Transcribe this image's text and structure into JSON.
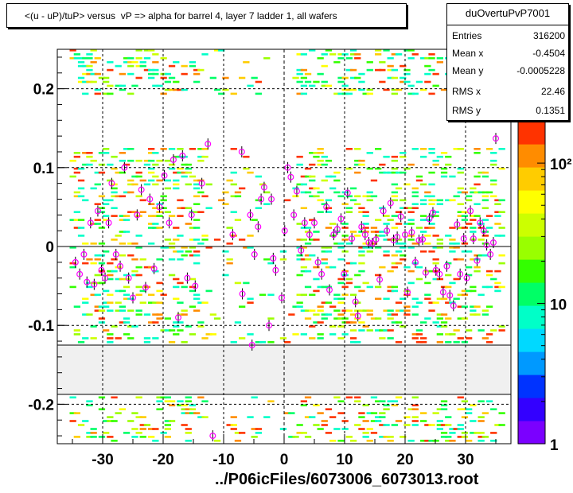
{
  "title": "<(u - uP)/tuP> versus  vP => alpha for barrel 4, layer 7 ladder 1, all wafers",
  "stats": {
    "name": "duOvertuPvP7001",
    "rows": [
      {
        "label": "Entries",
        "value": "316200"
      },
      {
        "label": "Mean x",
        "value": "-0.4504"
      },
      {
        "label": "Mean y",
        "value": "-0.0005228"
      },
      {
        "label": "RMS x",
        "value": "22.46"
      },
      {
        "label": "RMS y",
        "value": "0.1351"
      }
    ]
  },
  "footer": "../P06icFiles/6073006_6073013.root",
  "chart_data": {
    "type": "heatmap",
    "title": "<(u - uP)/tuP> versus  vP => alpha for barrel 4, layer 7 ladder 1, all wafers",
    "xlabel": "",
    "ylabel": "",
    "xlim": [
      -37.5,
      37.5
    ],
    "ylim": [
      -0.25,
      0.25
    ],
    "x_ticks": [
      -30,
      -20,
      -10,
      0,
      10,
      20,
      30
    ],
    "x_tick_labels": [
      "-30",
      "-20",
      "-10",
      "0",
      "10",
      "20",
      "30"
    ],
    "y_ticks": [
      -0.2,
      -0.1,
      0,
      0.1,
      0.2
    ],
    "y_tick_labels": [
      "-0.2",
      "-0.1",
      "0",
      "0.1",
      "0.2"
    ],
    "grid": true,
    "empty_band_y": [
      -0.188,
      -0.124
    ],
    "color_scale": {
      "type": "log",
      "min": 1,
      "max": 200,
      "tick_labels": [
        "1",
        "10",
        "10²"
      ]
    },
    "colors": [
      "#7b00ff",
      "#3300ff",
      "#0033ff",
      "#0099ff",
      "#00d9ff",
      "#00ffc8",
      "#00ff66",
      "#33ff00",
      "#99ff00",
      "#ccff00",
      "#ffff00",
      "#ffcc00",
      "#ff8c00",
      "#ff3300"
    ],
    "profile_points": [
      {
        "x": -34.5,
        "y": -0.02
      },
      {
        "x": -33.8,
        "y": -0.035
      },
      {
        "x": -33.1,
        "y": -0.01
      },
      {
        "x": -32.6,
        "y": -0.045
      },
      {
        "x": -32.0,
        "y": 0.03
      },
      {
        "x": -31.4,
        "y": -0.048
      },
      {
        "x": -30.8,
        "y": 0.045
      },
      {
        "x": -30.2,
        "y": -0.03
      },
      {
        "x": -29.6,
        "y": -0.04
      },
      {
        "x": -29.0,
        "y": 0.03
      },
      {
        "x": -28.5,
        "y": 0.08
      },
      {
        "x": -27.8,
        "y": -0.01
      },
      {
        "x": -27.1,
        "y": -0.025
      },
      {
        "x": -26.4,
        "y": 0.1
      },
      {
        "x": -25.7,
        "y": -0.04
      },
      {
        "x": -25.0,
        "y": -0.065
      },
      {
        "x": -24.3,
        "y": 0.04
      },
      {
        "x": -23.6,
        "y": 0.072
      },
      {
        "x": -22.9,
        "y": -0.052
      },
      {
        "x": -22.2,
        "y": 0.06
      },
      {
        "x": -21.5,
        "y": -0.028
      },
      {
        "x": -20.6,
        "y": 0.05
      },
      {
        "x": -19.8,
        "y": 0.09
      },
      {
        "x": -19.0,
        "y": 0.03
      },
      {
        "x": -18.3,
        "y": 0.11
      },
      {
        "x": -17.5,
        "y": -0.09
      },
      {
        "x": -16.8,
        "y": 0.115
      },
      {
        "x": -16.0,
        "y": -0.04
      },
      {
        "x": -15.3,
        "y": 0.04
      },
      {
        "x": -14.7,
        "y": -0.05
      },
      {
        "x": -13.6,
        "y": 0.08
      },
      {
        "x": -12.6,
        "y": 0.13
      },
      {
        "x": -11.8,
        "y": -0.24
      },
      {
        "x": -8.5,
        "y": 0.015
      },
      {
        "x": -7.0,
        "y": 0.12
      },
      {
        "x": -6.9,
        "y": -0.06
      },
      {
        "x": -5.6,
        "y": 0.04
      },
      {
        "x": -5.3,
        "y": -0.125
      },
      {
        "x": -4.9,
        "y": -0.01
      },
      {
        "x": -4.3,
        "y": 0.025
      },
      {
        "x": -3.8,
        "y": 0.06
      },
      {
        "x": -3.3,
        "y": 0.075
      },
      {
        "x": -2.5,
        "y": -0.1
      },
      {
        "x": -2.1,
        "y": 0.06
      },
      {
        "x": -1.8,
        "y": -0.015
      },
      {
        "x": -1.4,
        "y": -0.03
      },
      {
        "x": -0.4,
        "y": -0.065
      },
      {
        "x": 0.1,
        "y": 0.02
      },
      {
        "x": 0.6,
        "y": 0.1
      },
      {
        "x": 1.1,
        "y": 0.088
      },
      {
        "x": 1.6,
        "y": 0.04
      },
      {
        "x": 2.1,
        "y": 0.07
      },
      {
        "x": 2.8,
        "y": -0.005
      },
      {
        "x": 3.4,
        "y": 0.03
      },
      {
        "x": 4.2,
        "y": 0.015
      },
      {
        "x": 5.0,
        "y": 0.03
      },
      {
        "x": 5.6,
        "y": -0.02
      },
      {
        "x": 6.2,
        "y": -0.035
      },
      {
        "x": 7.0,
        "y": 0.05
      },
      {
        "x": 7.5,
        "y": -0.055
      },
      {
        "x": 8.2,
        "y": 0.015
      },
      {
        "x": 8.8,
        "y": 0.022
      },
      {
        "x": 9.4,
        "y": 0.035
      },
      {
        "x": 9.9,
        "y": -0.035
      },
      {
        "x": 10.5,
        "y": 0.068
      },
      {
        "x": 11.2,
        "y": 0.01
      },
      {
        "x": 11.8,
        "y": -0.07
      },
      {
        "x": 12.2,
        "y": -0.088
      },
      {
        "x": 12.8,
        "y": 0.025
      },
      {
        "x": 13.4,
        "y": 0.015
      },
      {
        "x": 14.0,
        "y": 0.005
      },
      {
        "x": 14.6,
        "y": 0.004
      },
      {
        "x": 15.2,
        "y": 0.009
      },
      {
        "x": 15.8,
        "y": -0.042
      },
      {
        "x": 16.4,
        "y": 0.045
      },
      {
        "x": 17.0,
        "y": 0.02
      },
      {
        "x": 17.6,
        "y": 0.055
      },
      {
        "x": 18.1,
        "y": 0.008
      },
      {
        "x": 18.7,
        "y": 0.012
      },
      {
        "x": 19.3,
        "y": 0.038
      },
      {
        "x": 20.0,
        "y": 0.015
      },
      {
        "x": 20.4,
        "y": -0.058
      },
      {
        "x": 21.1,
        "y": 0.018
      },
      {
        "x": 21.7,
        "y": -0.02
      },
      {
        "x": 22.3,
        "y": 0.008
      },
      {
        "x": 22.9,
        "y": 0.009
      },
      {
        "x": 23.4,
        "y": -0.033
      },
      {
        "x": 24.0,
        "y": 0.035
      },
      {
        "x": 24.6,
        "y": 0.043
      },
      {
        "x": 25.1,
        "y": -0.03
      },
      {
        "x": 25.7,
        "y": -0.035
      },
      {
        "x": 26.3,
        "y": -0.058
      },
      {
        "x": 26.9,
        "y": -0.025
      },
      {
        "x": 27.4,
        "y": -0.062
      },
      {
        "x": 28.0,
        "y": -0.075
      },
      {
        "x": 28.6,
        "y": 0.028
      },
      {
        "x": 29.1,
        "y": -0.035
      },
      {
        "x": 29.7,
        "y": 0.01
      },
      {
        "x": 30.2,
        "y": -0.04
      },
      {
        "x": 30.8,
        "y": 0.045
      },
      {
        "x": 31.3,
        "y": 0.01
      },
      {
        "x": 31.9,
        "y": -0.018
      },
      {
        "x": 32.4,
        "y": 0.03
      },
      {
        "x": 33.0,
        "y": 0.02
      },
      {
        "x": 33.5,
        "y": 0.002
      },
      {
        "x": 34.1,
        "y": -0.01
      },
      {
        "x": 34.6,
        "y": 0.005
      },
      {
        "x": 35.0,
        "y": 0.137
      }
    ]
  }
}
